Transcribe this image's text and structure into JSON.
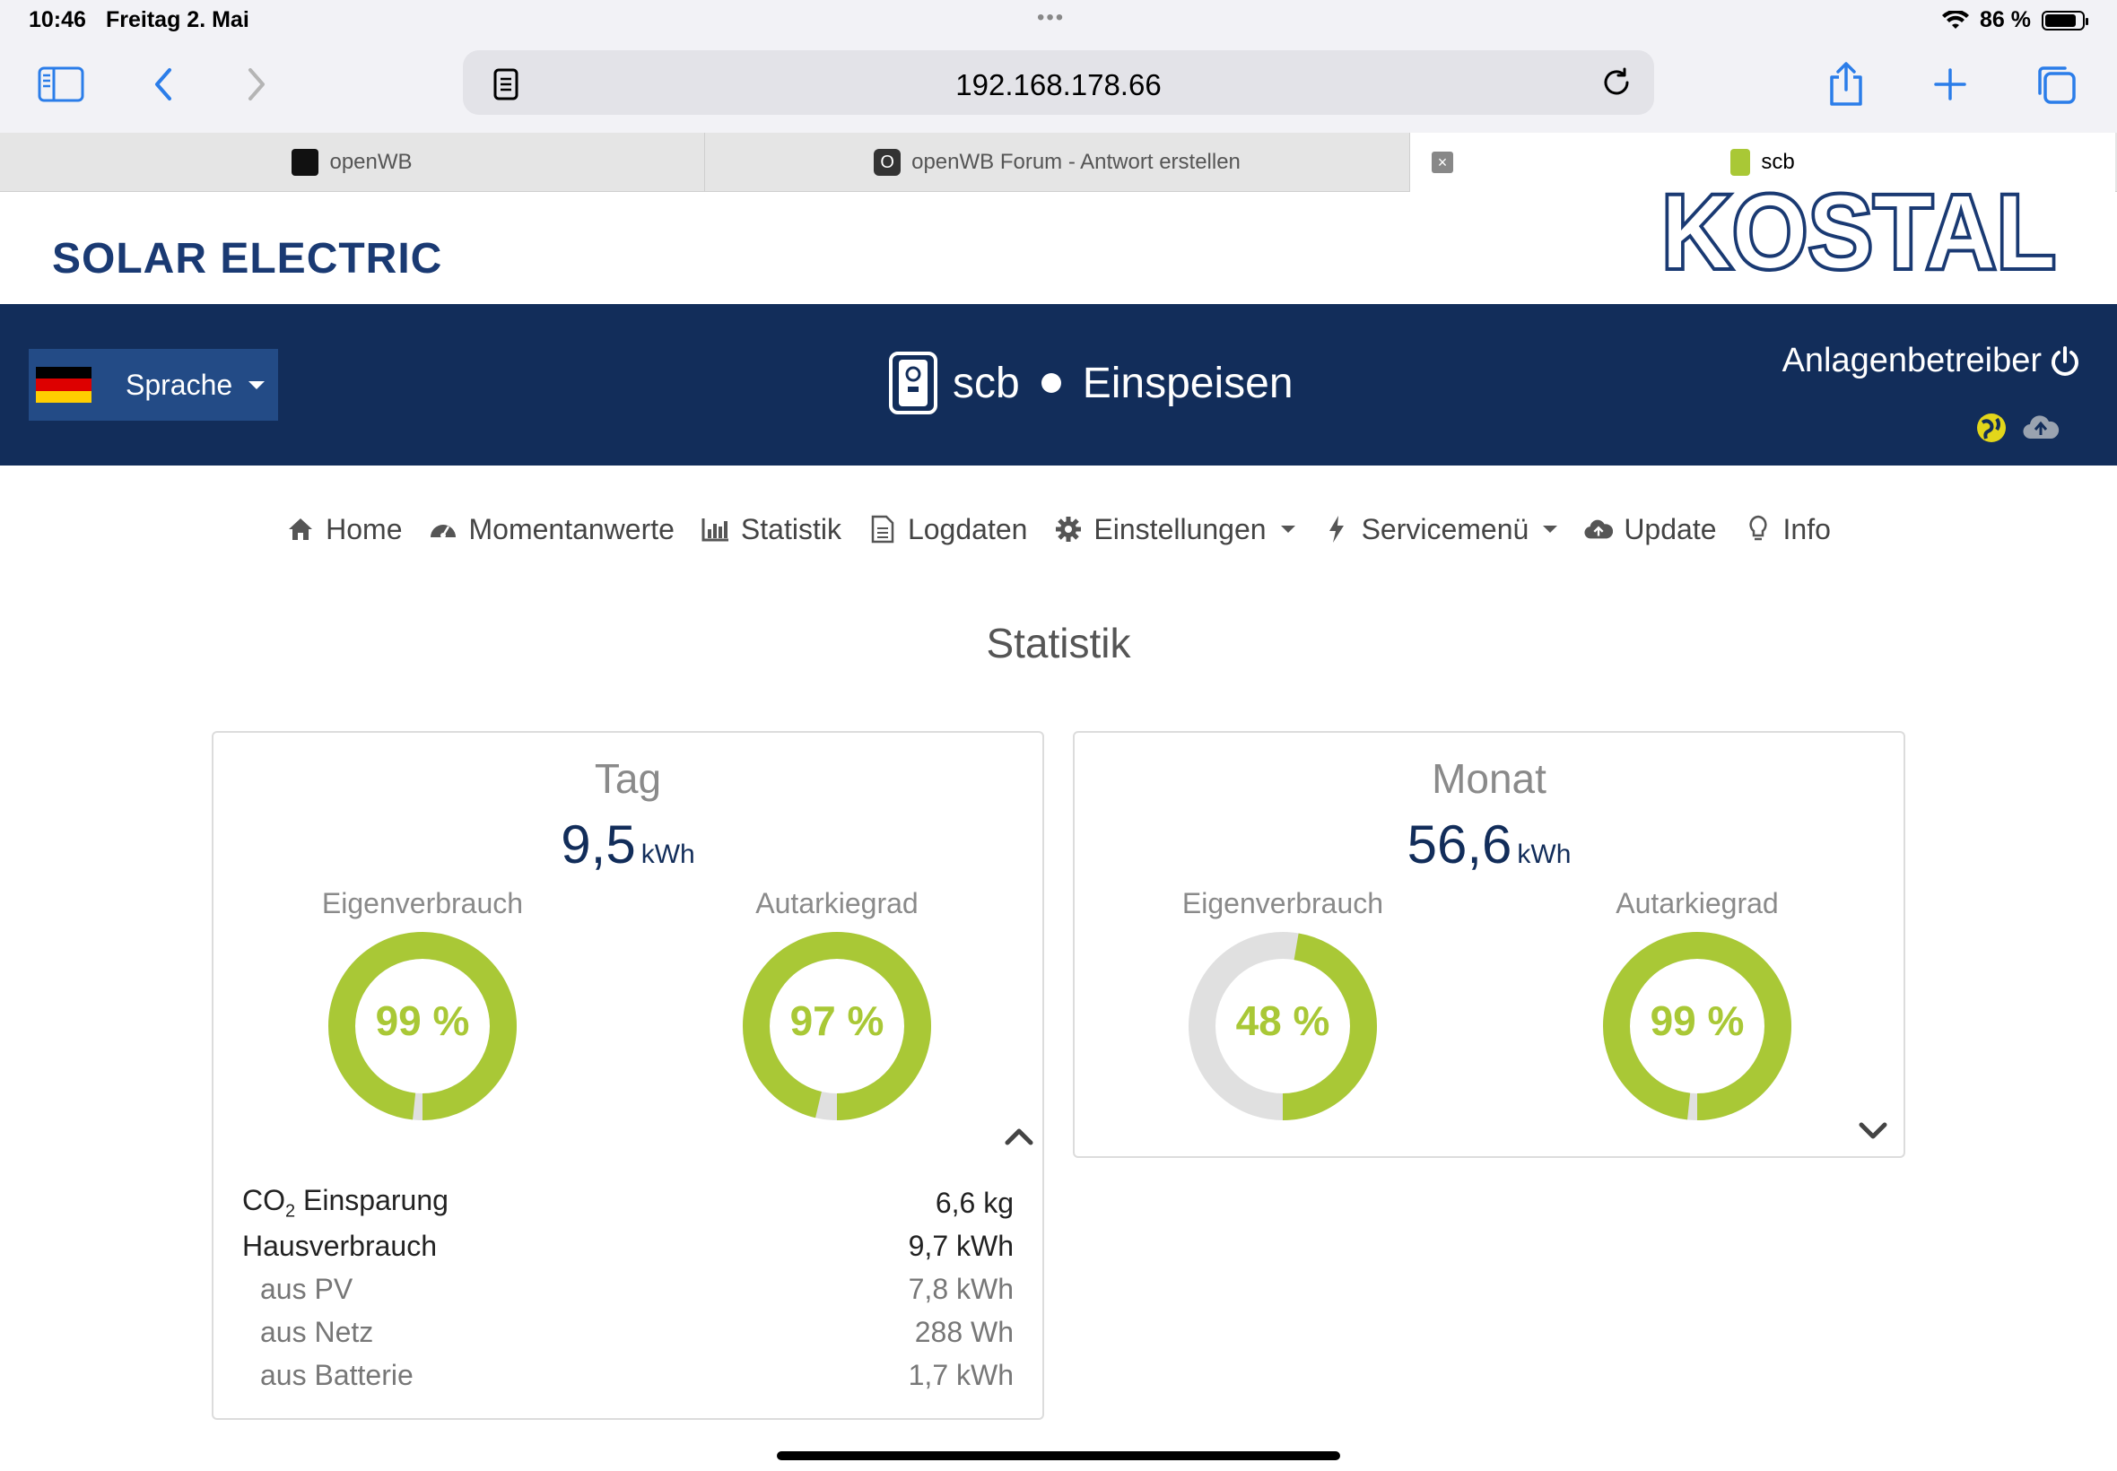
{
  "status_bar": {
    "time": "10:46",
    "date": "Freitag 2. Mai",
    "battery": "86 %",
    "battery_level": 0.86
  },
  "browser": {
    "url": "192.168.178.66",
    "tabs": [
      {
        "label": "openWB",
        "active": false
      },
      {
        "label": "openWB Forum - Antwort erstellen",
        "active": false
      },
      {
        "label": "scb",
        "active": true
      }
    ]
  },
  "header": {
    "brand_left": "SOLAR ELECTRIC",
    "logo_text": "KOSTAL",
    "language_label": "Sprache",
    "device_name": "scb",
    "device_state": "Einspeisen",
    "operator_label": "Anlagenbetreiber"
  },
  "nav": {
    "home": "Home",
    "momentanwerte": "Momentanwerte",
    "statistik": "Statistik",
    "logdaten": "Logdaten",
    "einstellungen": "Einstellungen",
    "servicemenu": "Servicemenü",
    "update": "Update",
    "info": "Info"
  },
  "page_title": "Statistik",
  "cards": {
    "day": {
      "title": "Tag",
      "total_value": "9,5",
      "total_unit": "kWh",
      "eigenverbrauch_label": "Eigenverbrauch",
      "eigenverbrauch_pct": "99 %",
      "eigenverbrauch_value": 99,
      "autarkie_label": "Autarkiegrad",
      "autarkie_pct": "97 %",
      "autarkie_value": 97,
      "stats": {
        "co2_label": "CO",
        "co2_sub": "2",
        "co2_label_rest": " Einsparung",
        "co2_value": "6,6 kg",
        "haus_label": "Hausverbrauch",
        "haus_value": "9,7 kWh",
        "pv_label": "aus PV",
        "pv_value": "7,8 kWh",
        "netz_label": "aus Netz",
        "netz_value": "288 Wh",
        "batterie_label": "aus Batterie",
        "batterie_value": "1,7 kWh"
      }
    },
    "month": {
      "title": "Monat",
      "total_value": "56,6",
      "total_unit": "kWh",
      "eigenverbrauch_label": "Eigenverbrauch",
      "eigenverbrauch_pct": "48 %",
      "eigenverbrauch_value": 48,
      "autarkie_label": "Autarkiegrad",
      "autarkie_pct": "99 %",
      "autarkie_value": 99
    }
  },
  "colors": {
    "navy": "#122d5a",
    "accent_green": "#a9c836",
    "gauge_track": "#e0e0e0",
    "brand_blue": "#1a3a73"
  }
}
